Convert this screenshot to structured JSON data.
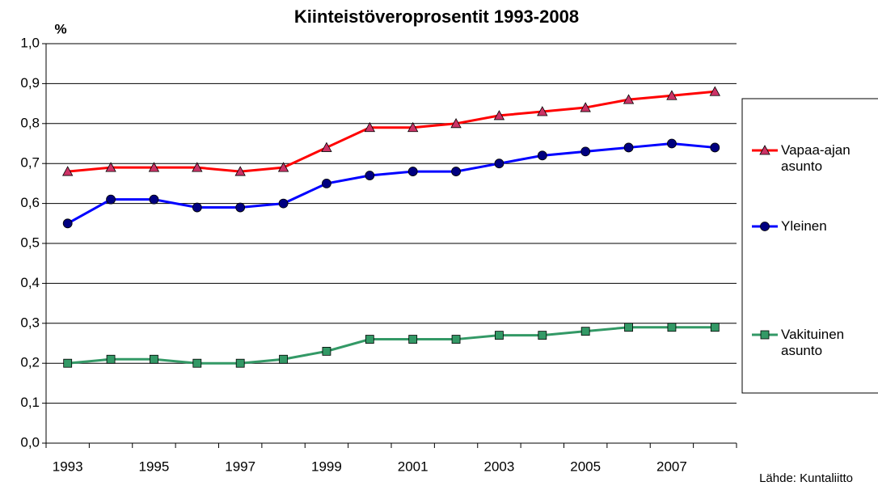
{
  "chart_data": {
    "type": "line",
    "title": "Kiinteistöveroprosentit 1993-2008",
    "y_label": "%",
    "source": "Lähde: Kuntaliitto",
    "categories": [
      "1993",
      null,
      "1995",
      null,
      "1997",
      null,
      "1999",
      null,
      "2001",
      null,
      "2003",
      null,
      "2005",
      null,
      "2007",
      null
    ],
    "series": [
      {
        "name": "Vapaa-ajan asunto",
        "color": "#ff0000",
        "marker": "triangle",
        "marker_color": "#cc3366",
        "values": [
          0.68,
          0.69,
          0.69,
          0.69,
          0.68,
          0.69,
          0.74,
          0.79,
          0.79,
          0.8,
          0.82,
          0.83,
          0.84,
          0.86,
          0.87,
          0.88
        ]
      },
      {
        "name": "Yleinen",
        "color": "#0000ff",
        "marker": "circle",
        "marker_color": "#000080",
        "values": [
          0.55,
          0.61,
          0.61,
          0.59,
          0.59,
          0.6,
          0.65,
          0.67,
          0.68,
          0.68,
          0.7,
          0.72,
          0.73,
          0.74,
          0.75,
          0.74
        ]
      },
      {
        "name": "Vakituinen asunto",
        "color": "#339966",
        "marker": "square",
        "marker_color": "#339966",
        "values": [
          0.2,
          0.21,
          0.21,
          0.2,
          0.2,
          0.21,
          0.23,
          0.26,
          0.26,
          0.26,
          0.27,
          0.27,
          0.28,
          0.29,
          0.29,
          0.29
        ]
      }
    ],
    "ylim": [
      0,
      1
    ],
    "yticks": [
      {
        "value": 0,
        "label": "0,0"
      },
      {
        "value": 0.1,
        "label": "0,1"
      },
      {
        "value": 0.2,
        "label": "0,2"
      },
      {
        "value": 0.3,
        "label": "0,3"
      },
      {
        "value": 0.4,
        "label": "0,4"
      },
      {
        "value": 0.5,
        "label": "0,5"
      },
      {
        "value": 0.6,
        "label": "0,6"
      },
      {
        "value": 0.7,
        "label": "0,7"
      },
      {
        "value": 0.8,
        "label": "0,8"
      },
      {
        "value": 0.9,
        "label": "0,9"
      },
      {
        "value": 1,
        "label": "1,0"
      }
    ],
    "grid": true,
    "legend": "right"
  }
}
